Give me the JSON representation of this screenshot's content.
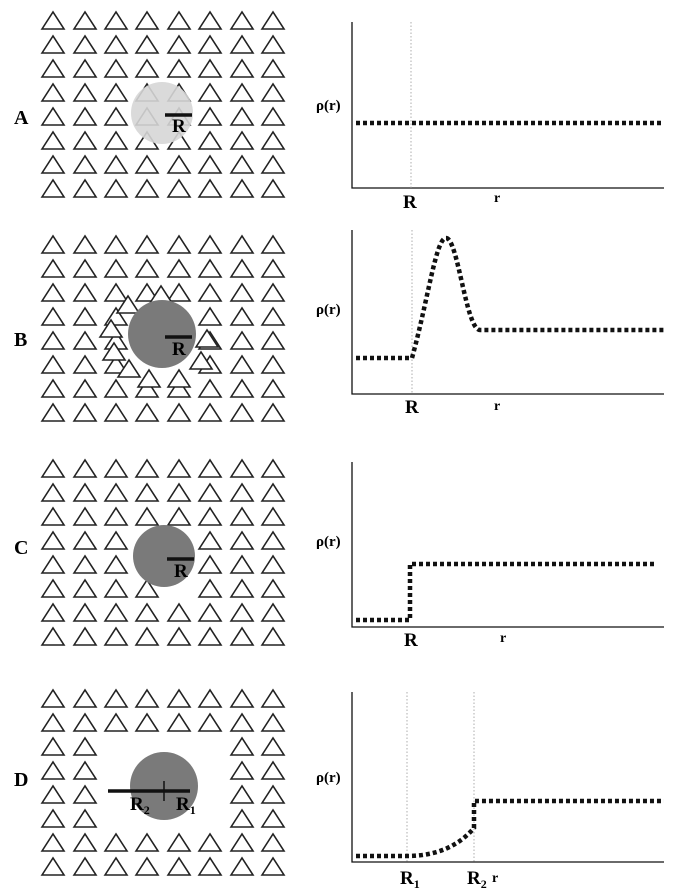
{
  "panels": [
    {
      "letter": "A",
      "solute_color": "#d6d6d6",
      "radius_label": "R",
      "y_axis_label": "ρ(r)",
      "x_marks": [
        "R"
      ],
      "x_var": "r",
      "description_profile": "flat"
    },
    {
      "letter": "B",
      "solute_color": "#7a7a7a",
      "radius_label": "R",
      "y_axis_label": "ρ(r)",
      "x_marks": [
        "R"
      ],
      "x_var": "r",
      "description_profile": "peak"
    },
    {
      "letter": "C",
      "solute_color": "#7a7a7a",
      "radius_label": "R",
      "y_axis_label": "ρ(r)",
      "x_marks": [
        "R"
      ],
      "x_var": "r",
      "description_profile": "step"
    },
    {
      "letter": "D",
      "solute_color": "#7a7a7a",
      "radius_labels": [
        "R2",
        "R1"
      ],
      "y_axis_label": "ρ(r)",
      "x_marks": [
        "R1",
        "R2"
      ],
      "x_var": "r",
      "description_profile": "smooth-step"
    }
  ]
}
